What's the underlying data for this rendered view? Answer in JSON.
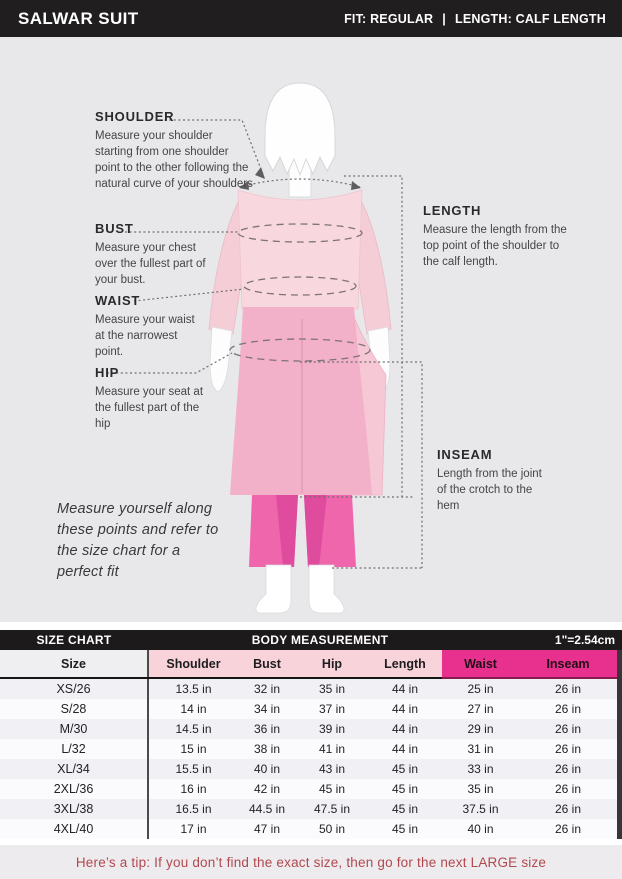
{
  "header": {
    "title": "SALWAR SUIT",
    "fit_label": "FIT: REGULAR",
    "separator": "|",
    "length_label": "LENGTH: CALF LENGTH"
  },
  "diagram": {
    "annotations": [
      {
        "id": "shoulder",
        "title": "SHOULDER",
        "description": "Measure your shoulder starting from one shoulder point to the other following the natural curve of your shoulders"
      },
      {
        "id": "bust",
        "title": "BUST",
        "description": "Measure your chest over the fullest part of your bust."
      },
      {
        "id": "waist",
        "title": "WAIST",
        "description": "Measure your waist at the narrowest point."
      },
      {
        "id": "hip",
        "title": "HIP",
        "description": "Measure your seat at the fullest part of the hip"
      },
      {
        "id": "length",
        "title": "LENGTH",
        "description": "Measure the length from the top point of the shoulder to the calf length."
      },
      {
        "id": "inseam",
        "title": "INSEAM",
        "description": "Length from the joint of the crotch to the hem"
      }
    ],
    "note": "Measure yourself along these points and refer to the size chart for a perfect fit"
  },
  "size_chart": {
    "bar": {
      "left": "SIZE CHART",
      "center": "BODY MEASUREMENT",
      "right": "1\"=2.54cm"
    },
    "columns": [
      "Size",
      "Shoulder",
      "Bust",
      "Hip",
      "Length",
      "Waist",
      "Inseam"
    ],
    "rows": [
      [
        "XS/26",
        "13.5 in",
        "32 in",
        "35 in",
        "44 in",
        "25 in",
        "26 in"
      ],
      [
        "S/28",
        "14 in",
        "34 in",
        "37 in",
        "44 in",
        "27 in",
        "26 in"
      ],
      [
        "M/30",
        "14.5 in",
        "36 in",
        "39 in",
        "44 in",
        "29 in",
        "26 in"
      ],
      [
        "L/32",
        "15 in",
        "38 in",
        "41 in",
        "44 in",
        "31 in",
        "26 in"
      ],
      [
        "XL/34",
        "15.5 in",
        "40 in",
        "43 in",
        "45 in",
        "33 in",
        "26 in"
      ],
      [
        "2XL/36",
        "16 in",
        "42 in",
        "45 in",
        "45 in",
        "35 in",
        "26 in"
      ],
      [
        "3XL/38",
        "16.5 in",
        "44.5 in",
        "47.5 in",
        "45 in",
        "37.5 in",
        "26 in"
      ],
      [
        "4XL/40",
        "17 in",
        "47 in",
        "50 in",
        "45 in",
        "40 in",
        "26 in"
      ]
    ]
  },
  "footer": {
    "tip": "Here’s a tip: If you don’t find the exact size, then go for the next LARGE size"
  },
  "colors": {
    "bar_black": "#201e1f",
    "diagram_background": "#e8e7ea",
    "kurta_light_pink": "#f8d8de",
    "kurta_skirt_pink": "#f3b0c9",
    "salwar_magenta": "#ef66ac",
    "header_pink": "#f8d3da",
    "header_magenta": "#e8308f",
    "header_magenta_border": "#871d4e",
    "tip_red": "#b0494f"
  }
}
